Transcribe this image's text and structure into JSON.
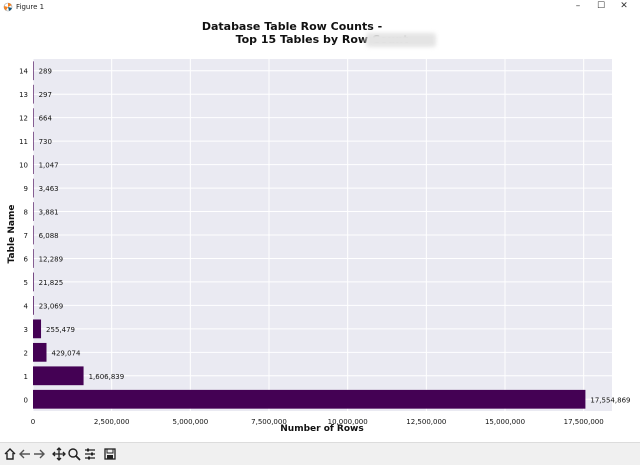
{
  "window": {
    "title": "Figure 1",
    "controls": {
      "minimize": "–",
      "maximize": "☐",
      "close": "✕"
    }
  },
  "toolbar": {
    "buttons": [
      "home-icon",
      "back-icon",
      "forward-icon",
      "pan-icon",
      "zoom-icon",
      "configure-subplots-icon",
      "save-icon"
    ]
  },
  "colors": {
    "bar": "#440154",
    "plot_bg": "#eaeaf2",
    "grid": "#ffffff"
  },
  "chart_data": {
    "type": "bar",
    "orientation": "horizontal",
    "title": "Database Table Row Counts -",
    "subtitle": "Top 15 Tables by Row Count",
    "xlabel": "Number of Rows",
    "ylabel": "Table Name",
    "categories": [
      "0",
      "1",
      "2",
      "3",
      "4",
      "5",
      "6",
      "7",
      "8",
      "9",
      "10",
      "11",
      "12",
      "13",
      "14"
    ],
    "values": [
      17554869,
      1606839,
      429074,
      255479,
      23069,
      21825,
      12289,
      6088,
      3881,
      3463,
      1047,
      730,
      664,
      297,
      289
    ],
    "value_labels": [
      "17,554,869",
      "1,606,839",
      "429,074",
      "255,479",
      "23,069",
      "21,825",
      "12,289",
      "6,088",
      "3,881",
      "3,463",
      "1,047",
      "730",
      "664",
      "297",
      "289"
    ],
    "xticks": [
      0,
      2500000,
      5000000,
      7500000,
      10000000,
      12500000,
      15000000,
      17500000
    ],
    "xtick_labels": [
      "0",
      "2,500,000",
      "5,000,000",
      "7,500,000",
      "10,000,000",
      "12,500,000",
      "15,000,000",
      "17,500,000"
    ],
    "xlim": [
      0,
      18400000
    ],
    "grid": true
  }
}
